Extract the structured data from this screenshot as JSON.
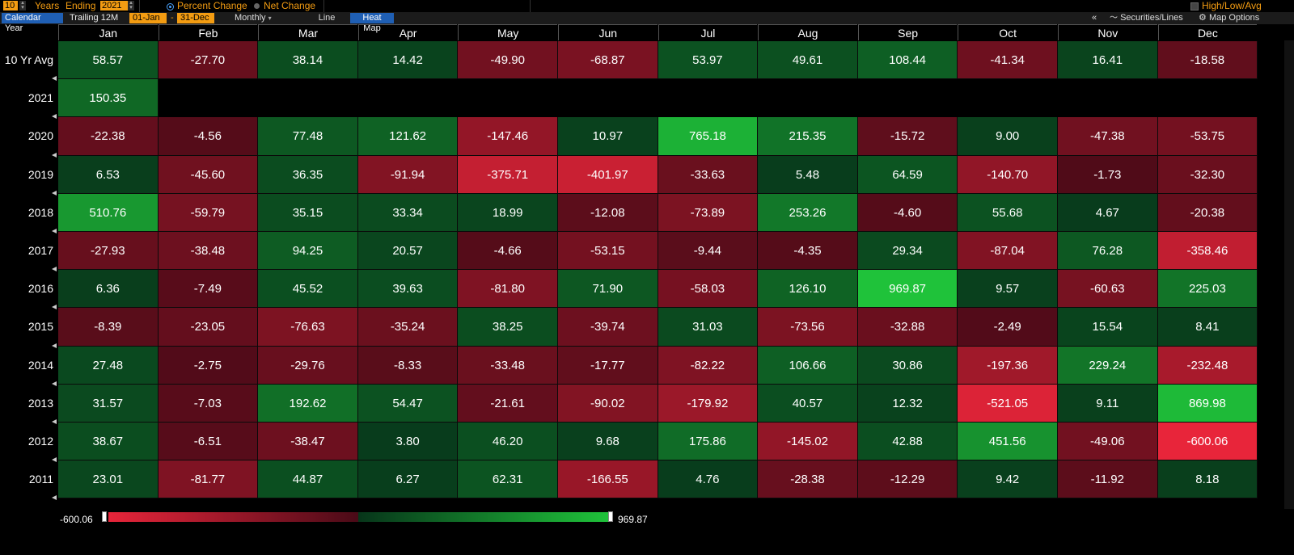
{
  "controls": {
    "years_value": "10",
    "years_label": "Years",
    "ending_label": "Ending",
    "ending_value": "2021",
    "percent_change_label": "Percent Change",
    "net_change_label": "Net Change",
    "high_low_avg_label": "High/Low/Avg",
    "calendar_year_label": "Calendar Year",
    "trailing_label": "Trailing 12M",
    "start_date": "01-Jan",
    "dash": "-",
    "end_date": "31-Dec",
    "period_label": "Monthly",
    "line_label": "Line",
    "heatmap_label": "Heat Map",
    "collapse_label": "«",
    "securities_label": "Securities/Lines",
    "map_options_label": "Map Options"
  },
  "colors": {
    "neg_max": "#e8253a",
    "neg_min": "#4a0a17",
    "pos_min": "#07351a",
    "pos_max": "#1fc23a"
  },
  "chart_data": {
    "type": "heatmap",
    "columns": [
      "Jan",
      "Feb",
      "Mar",
      "Apr",
      "May",
      "Jun",
      "Jul",
      "Aug",
      "Sep",
      "Oct",
      "Nov",
      "Dec"
    ],
    "rows": [
      {
        "label": "10 Yr Avg",
        "values": [
          "58.57",
          "-27.70",
          "38.14",
          "14.42",
          "-49.90",
          "-68.87",
          "53.97",
          "49.61",
          "108.44",
          "-41.34",
          "16.41",
          "-18.58"
        ]
      },
      {
        "label": "2021",
        "values": [
          "150.35",
          "",
          "",
          "",
          "",
          "",
          "",
          "",
          "",
          "",
          "",
          ""
        ]
      },
      {
        "label": "2020",
        "values": [
          "-22.38",
          "-4.56",
          "77.48",
          "121.62",
          "-147.46",
          "10.97",
          "765.18",
          "215.35",
          "-15.72",
          "9.00",
          "-47.38",
          "-53.75"
        ]
      },
      {
        "label": "2019",
        "values": [
          "6.53",
          "-45.60",
          "36.35",
          "-91.94",
          "-375.71",
          "-401.97",
          "-33.63",
          "5.48",
          "64.59",
          "-140.70",
          "-1.73",
          "-32.30"
        ]
      },
      {
        "label": "2018",
        "values": [
          "510.76",
          "-59.79",
          "35.15",
          "33.34",
          "18.99",
          "-12.08",
          "-73.89",
          "253.26",
          "-4.60",
          "55.68",
          "4.67",
          "-20.38"
        ]
      },
      {
        "label": "2017",
        "values": [
          "-27.93",
          "-38.48",
          "94.25",
          "20.57",
          "-4.66",
          "-53.15",
          "-9.44",
          "-4.35",
          "29.34",
          "-87.04",
          "76.28",
          "-358.46"
        ]
      },
      {
        "label": "2016",
        "values": [
          "6.36",
          "-7.49",
          "45.52",
          "39.63",
          "-81.80",
          "71.90",
          "-58.03",
          "126.10",
          "969.87",
          "9.57",
          "-60.63",
          "225.03"
        ]
      },
      {
        "label": "2015",
        "values": [
          "-8.39",
          "-23.05",
          "-76.63",
          "-35.24",
          "38.25",
          "-39.74",
          "31.03",
          "-73.56",
          "-32.88",
          "-2.49",
          "15.54",
          "8.41"
        ]
      },
      {
        "label": "2014",
        "values": [
          "27.48",
          "-2.75",
          "-29.76",
          "-8.33",
          "-33.48",
          "-17.77",
          "-82.22",
          "106.66",
          "30.86",
          "-197.36",
          "229.24",
          "-232.48"
        ]
      },
      {
        "label": "2013",
        "values": [
          "31.57",
          "-7.03",
          "192.62",
          "54.47",
          "-21.61",
          "-90.02",
          "-179.92",
          "40.57",
          "12.32",
          "-521.05",
          "9.11",
          "869.98"
        ]
      },
      {
        "label": "2012",
        "values": [
          "38.67",
          "-6.51",
          "-38.47",
          "3.80",
          "46.20",
          "9.68",
          "175.86",
          "-145.02",
          "42.88",
          "451.56",
          "-49.06",
          "-600.06"
        ]
      },
      {
        "label": "2011",
        "values": [
          "23.01",
          "-81.77",
          "44.87",
          "6.27",
          "62.31",
          "-166.55",
          "4.76",
          "-28.38",
          "-12.29",
          "9.42",
          "-11.92",
          "8.18"
        ]
      }
    ],
    "scale_min": "-600.06",
    "scale_max": "969.87"
  }
}
